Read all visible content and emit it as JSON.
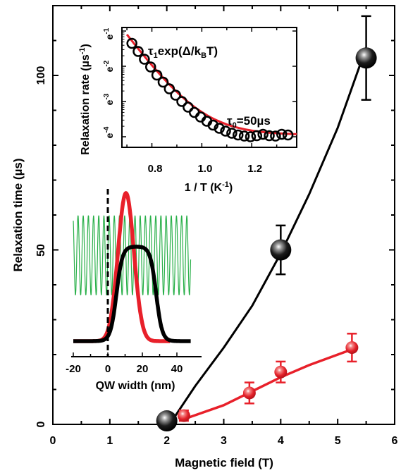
{
  "chart_data": [
    {
      "type": "scatter",
      "xlabel": "Magnetic field (T)",
      "ylabel": "Relaxation time (µs)",
      "xlim": [
        0,
        6
      ],
      "ylim": [
        0,
        120
      ],
      "xticks": [
        "0",
        "1",
        "2",
        "3",
        "4",
        "5",
        "6"
      ],
      "yticks": [
        "0",
        "50",
        "100"
      ],
      "series": [
        {
          "color": "#000000",
          "marker": "large sphere",
          "points": [
            {
              "x": 2.0,
              "y": 1,
              "err": 0
            },
            {
              "x": 4.0,
              "y": 50,
              "err": 7
            },
            {
              "x": 5.5,
              "y": 105,
              "err": 12
            }
          ],
          "fit_curve": [
            [
              2.05,
              0
            ],
            [
              2.5,
              11
            ],
            [
              3.0,
              22
            ],
            [
              3.5,
              34
            ],
            [
              4.0,
              49
            ],
            [
              4.5,
              66
            ],
            [
              5.0,
              85
            ],
            [
              5.5,
              108
            ]
          ]
        },
        {
          "color": "#e8202a",
          "marker": "small sphere",
          "points": [
            {
              "x": 2.3,
              "y": 2.5,
              "err": 1.5
            },
            {
              "x": 3.45,
              "y": 9,
              "err": 3
            },
            {
              "x": 4.0,
              "y": 15,
              "err": 3
            },
            {
              "x": 5.25,
              "y": 22,
              "err": 4
            }
          ],
          "fit_curve": [
            [
              2.3,
              1.5
            ],
            [
              3.0,
              5.5
            ],
            [
              3.5,
              9.5
            ],
            [
              4.0,
              13.5
            ],
            [
              4.5,
              17
            ],
            [
              5.25,
              21.5
            ]
          ]
        }
      ]
    },
    {
      "type": "scatter",
      "xlabel": "1 / T (K",
      "xlabel_sup": "-1",
      "xlabel_end": ")",
      "ylabel": "Relaxation rate (µs",
      "ylabel_sup": "-1",
      "ylabel_end": ")",
      "xlim": [
        0.68,
        1.38
      ],
      "y_scale": "ln",
      "ylim": [
        -4.3,
        -0.9
      ],
      "xticks": [
        "0.8",
        "1.0",
        "1.2"
      ],
      "ytick_values": [
        -1,
        -2,
        -3,
        -4
      ],
      "ytick_base": "e",
      "ytick_exps": [
        "-1",
        "-2",
        "-3",
        "-4"
      ],
      "annotation_formula": {
        "pre": "τ",
        "sub1": "1",
        "mid": "exp(Δ/k",
        "sub2": "B",
        "post": "T)"
      },
      "annotation_tau0": {
        "pre": "τ",
        "sub": "0",
        "post": "=50µs"
      },
      "points_x": [
        0.72,
        0.745,
        0.77,
        0.795,
        0.82,
        0.845,
        0.87,
        0.895,
        0.92,
        0.945,
        0.97,
        0.995,
        1.02,
        1.045,
        1.07,
        1.095,
        1.12,
        1.145,
        1.17,
        1.195,
        1.22,
        1.245,
        1.27,
        1.295,
        1.32,
        1.345
      ],
      "points_y": [
        -1.35,
        -1.58,
        -1.8,
        -2.02,
        -2.25,
        -2.45,
        -2.64,
        -2.82,
        -3.0,
        -3.16,
        -3.31,
        -3.44,
        -3.56,
        -3.67,
        -3.76,
        -3.84,
        -3.9,
        -3.95,
        -3.98,
        -4.0,
        -3.97,
        -3.93,
        -3.97,
        -3.98,
        -3.93,
        -3.95
      ],
      "fit_color": "#e8202a"
    },
    {
      "type": "line",
      "xlabel": "QW width (nm)",
      "xlim": [
        -22,
        50
      ],
      "ylim": [
        0,
        1
      ],
      "xticks": [
        "-20",
        "0",
        "20",
        "40"
      ],
      "series": [
        {
          "color": "#2ab04a",
          "kind": "oscillation",
          "x_start": -20,
          "x_end": 48,
          "period": 3.0,
          "center": 0.58,
          "amplitude": 0.27
        },
        {
          "color": "#e8202a",
          "kind": "gaussian",
          "center": 10.5,
          "width": 6.5,
          "height": 1.0,
          "x_start": -20,
          "x_end": 36
        },
        {
          "color": "#000000",
          "kind": "flat_top",
          "edge_left": 5,
          "edge_right": 28,
          "edge_width": 3.8,
          "height": 0.64,
          "x_start": -20,
          "x_end": 48
        }
      ],
      "marker_line": {
        "x": 0,
        "style": "dashed"
      }
    }
  ]
}
